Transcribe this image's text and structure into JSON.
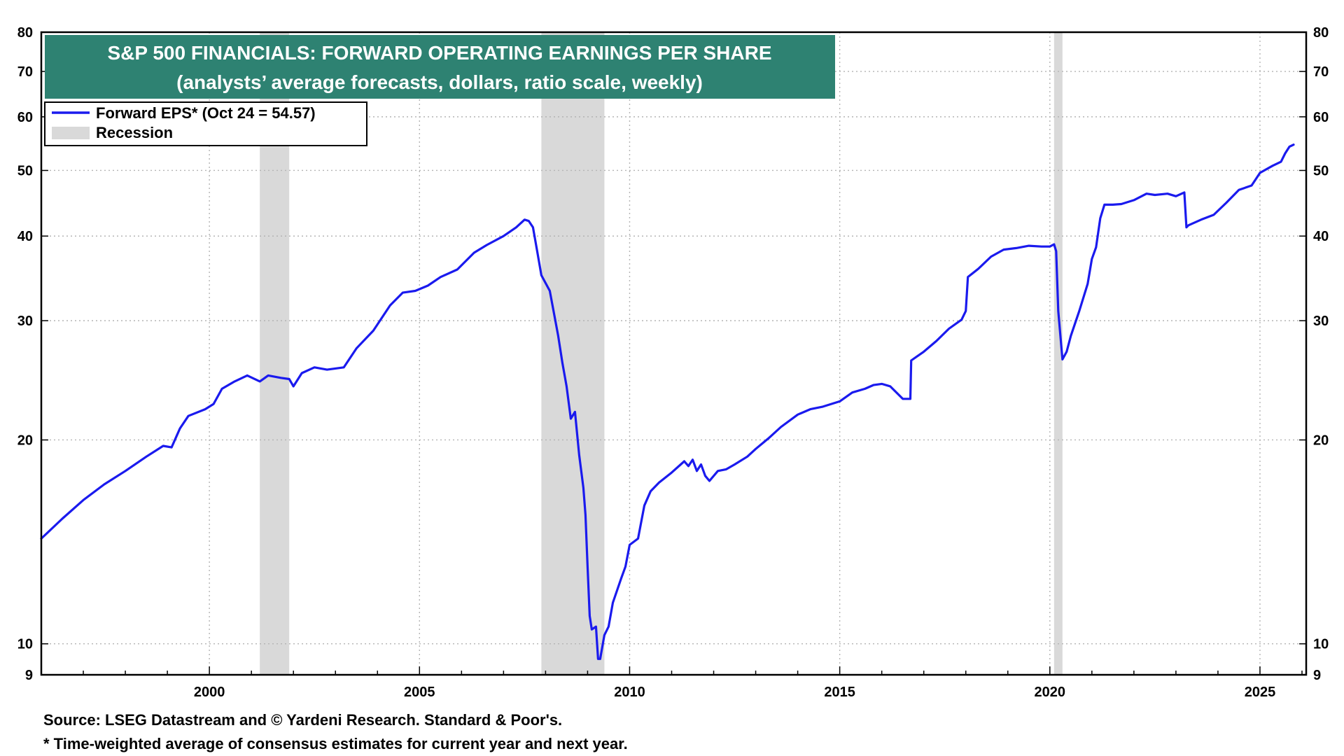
{
  "colors": {
    "line": "#1a1aee",
    "recession": "#d9d9d9",
    "title_bg": "#2e8272",
    "grid": "#b4b4b4",
    "axis": "#000000"
  },
  "footer": {
    "source": "Source: LSEG Datastream and © Yardeni Research. Standard & Poor's.",
    "footnote": "* Time-weighted average of consensus estimates for current year and next year."
  },
  "chart_data": {
    "type": "line",
    "title": "S&P 500 FINANCIALS: FORWARD OPERATING EARNINGS PER SHARE",
    "subtitle": "(analysts’ average forecasts, dollars, ratio scale, weekly)",
    "xlabel": "",
    "ylabel": "",
    "y_scale": "log",
    "xlim": [
      1996.0,
      2026.1
    ],
    "ylim": [
      9,
      80
    ],
    "x_ticks": [
      2000,
      2005,
      2010,
      2015,
      2020,
      2025
    ],
    "x_tick_labels": [
      "2000",
      "2005",
      "2010",
      "2015",
      "2020",
      "2025"
    ],
    "y_ticks": [
      9,
      10,
      20,
      30,
      40,
      50,
      60,
      70,
      80
    ],
    "y_tick_labels": [
      "9",
      "10",
      "20",
      "30",
      "40",
      "50",
      "60",
      "70",
      "80"
    ],
    "grid": true,
    "legend_position": "top-left",
    "legend": [
      {
        "label": "Forward EPS* (Oct 24 = 54.57)",
        "kind": "line"
      },
      {
        "label": "Recession",
        "kind": "band"
      }
    ],
    "recessions": [
      [
        2001.2,
        2001.9
      ],
      [
        2007.9,
        2009.4
      ],
      [
        2020.1,
        2020.3
      ]
    ],
    "series": [
      {
        "name": "Forward EPS* (Oct 24 = 54.57)",
        "x": [
          1996.0,
          1996.5,
          1997.0,
          1997.5,
          1998.0,
          1998.5,
          1998.9,
          1999.1,
          1999.3,
          1999.5,
          1999.9,
          2000.1,
          2000.3,
          2000.6,
          2000.9,
          2001.2,
          2001.4,
          2001.7,
          2001.9,
          2002.0,
          2002.2,
          2002.5,
          2002.8,
          2003.2,
          2003.5,
          2003.9,
          2004.3,
          2004.6,
          2004.9,
          2005.2,
          2005.5,
          2005.9,
          2006.3,
          2006.6,
          2007.0,
          2007.3,
          2007.5,
          2007.6,
          2007.7,
          2007.8,
          2007.9,
          2008.1,
          2008.3,
          2008.4,
          2008.5,
          2008.6,
          2008.7,
          2008.8,
          2008.9,
          2008.95,
          2009.0,
          2009.05,
          2009.1,
          2009.2,
          2009.25,
          2009.3,
          2009.4,
          2009.5,
          2009.6,
          2009.8,
          2009.9,
          2010.0,
          2010.2,
          2010.35,
          2010.5,
          2010.7,
          2011.0,
          2011.3,
          2011.4,
          2011.5,
          2011.6,
          2011.7,
          2011.8,
          2011.9,
          2012.1,
          2012.3,
          2012.5,
          2012.8,
          2013.0,
          2013.3,
          2013.6,
          2014.0,
          2014.3,
          2014.6,
          2015.0,
          2015.3,
          2015.6,
          2015.8,
          2016.0,
          2016.2,
          2016.5,
          2016.68,
          2016.7,
          2017.0,
          2017.3,
          2017.6,
          2017.9,
          2018.0,
          2018.05,
          2018.3,
          2018.6,
          2018.9,
          2019.2,
          2019.5,
          2019.8,
          2020.0,
          2020.1,
          2020.15,
          2020.2,
          2020.3,
          2020.4,
          2020.5,
          2020.7,
          2020.9,
          2021.0,
          2021.1,
          2021.2,
          2021.3,
          2021.5,
          2021.7,
          2022.0,
          2022.3,
          2022.5,
          2022.8,
          2023.0,
          2023.2,
          2023.25,
          2023.3,
          2023.6,
          2023.9,
          2024.2,
          2024.5,
          2024.8,
          2025.0,
          2025.3,
          2025.5,
          2025.6,
          2025.7,
          2025.8
        ],
        "values": [
          14.3,
          15.3,
          16.3,
          17.2,
          18.0,
          18.9,
          19.6,
          19.5,
          20.8,
          21.7,
          22.2,
          22.6,
          23.8,
          24.4,
          24.9,
          24.4,
          24.9,
          24.7,
          24.6,
          24.0,
          25.1,
          25.6,
          25.4,
          25.6,
          27.3,
          29.0,
          31.6,
          33.0,
          33.2,
          33.8,
          34.8,
          35.7,
          37.8,
          38.8,
          40.0,
          41.2,
          42.3,
          42.1,
          41.2,
          38.0,
          35.0,
          33.2,
          28.5,
          26.0,
          24.0,
          21.5,
          22.0,
          19.0,
          17.0,
          15.5,
          13.0,
          11.0,
          10.5,
          10.6,
          9.5,
          9.5,
          10.3,
          10.6,
          11.5,
          12.5,
          13.0,
          14.0,
          14.3,
          16.0,
          16.8,
          17.3,
          17.9,
          18.6,
          18.3,
          18.7,
          18.0,
          18.4,
          17.7,
          17.4,
          18.0,
          18.1,
          18.4,
          18.9,
          19.4,
          20.1,
          20.9,
          21.8,
          22.2,
          22.4,
          22.8,
          23.5,
          23.8,
          24.1,
          24.2,
          24.0,
          23.0,
          23.0,
          26.2,
          27.0,
          28.0,
          29.2,
          30.1,
          31.0,
          34.8,
          35.8,
          37.3,
          38.2,
          38.4,
          38.7,
          38.6,
          38.6,
          38.9,
          38.0,
          31.0,
          26.3,
          27.0,
          28.5,
          31.0,
          34.0,
          37.0,
          38.5,
          42.5,
          44.5,
          44.5,
          44.6,
          45.2,
          46.2,
          46.0,
          46.2,
          45.8,
          46.4,
          41.2,
          41.5,
          42.3,
          43.0,
          44.8,
          46.8,
          47.5,
          49.6,
          50.8,
          51.5,
          53.0,
          54.2,
          54.57
        ]
      }
    ]
  }
}
